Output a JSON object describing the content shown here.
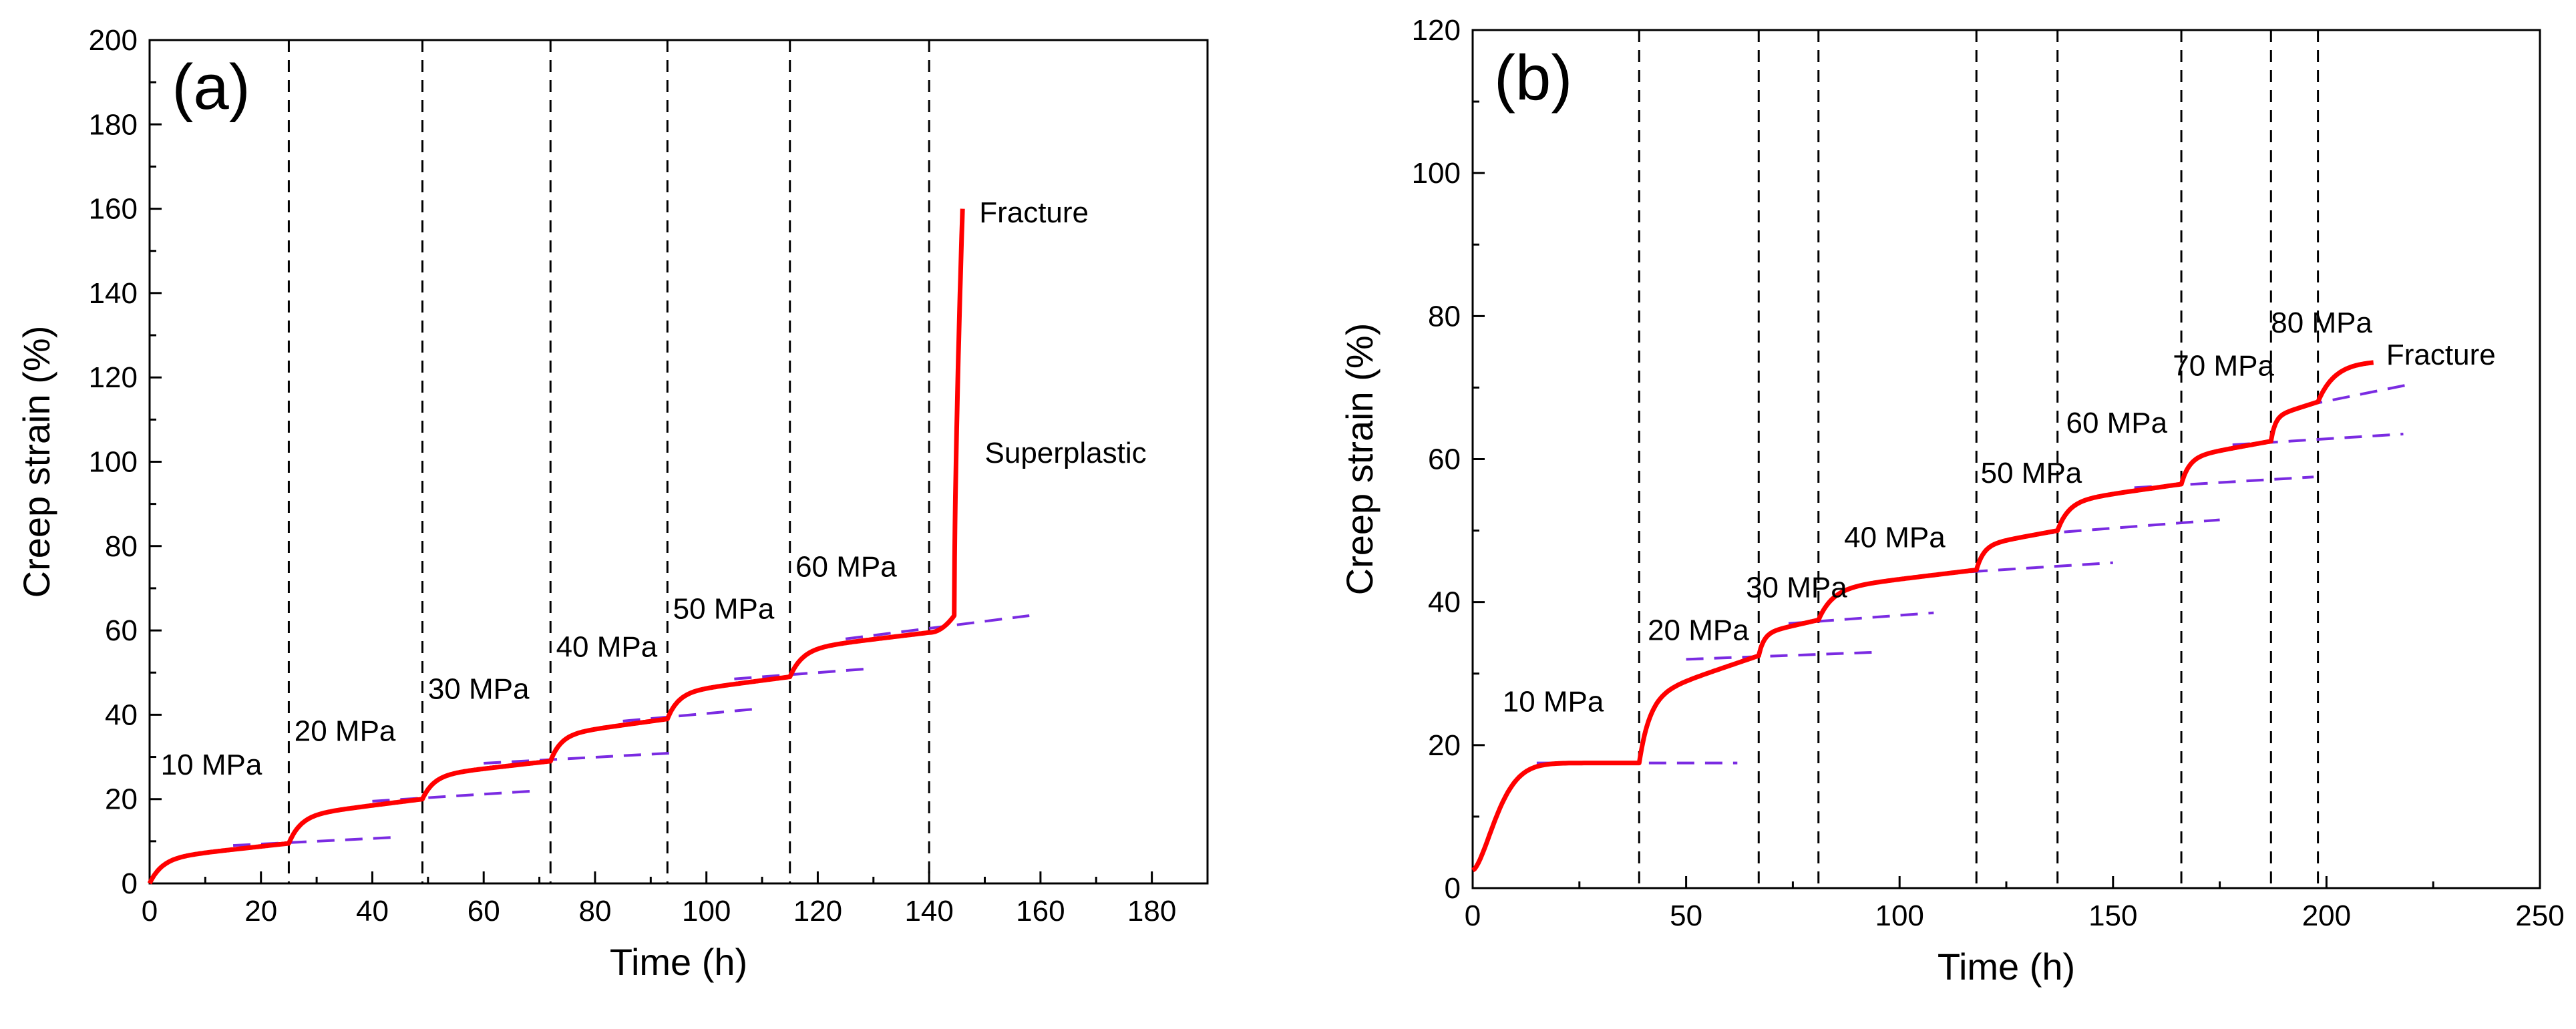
{
  "chart_data": [
    {
      "panel": "(a)",
      "type": "line",
      "xlabel": "Time (h)",
      "ylabel": "Creep strain (%)",
      "xlim": [
        0,
        190
      ],
      "ylim": [
        0,
        200
      ],
      "xticks": [
        0,
        20,
        40,
        60,
        80,
        100,
        120,
        140,
        160,
        180
      ],
      "yticks": [
        0,
        20,
        40,
        60,
        80,
        100,
        120,
        140,
        160,
        180,
        200
      ],
      "grid": false,
      "colors": {
        "creep": "#ff0000",
        "fit": "#7a2be2",
        "boundary": "#000000"
      },
      "stage_boundaries": [
        25,
        49,
        72,
        93,
        115,
        140
      ],
      "stages": [
        {
          "label": "10 MPa",
          "t0": 0,
          "t1": 25,
          "e0": 0,
          "e_end": 9.5
        },
        {
          "label": "20 MPa",
          "t0": 25,
          "t1": 49,
          "e0": 9.5,
          "e_end": 20
        },
        {
          "label": "30 MPa",
          "t0": 49,
          "t1": 72,
          "e0": 20,
          "e_end": 29
        },
        {
          "label": "40 MPa",
          "t0": 72,
          "t1": 93,
          "e0": 29,
          "e_end": 39
        },
        {
          "label": "50 MPa",
          "t0": 93,
          "t1": 115,
          "e0": 39,
          "e_end": 49
        },
        {
          "label": "60 MPa",
          "t0": 115,
          "t1": 140,
          "e0": 49,
          "e_end": 59.5
        }
      ],
      "final_stage": {
        "t0": 140,
        "t_fracture": 146,
        "e_fracture": 160
      },
      "fit_lines": [
        {
          "x": [
            15,
            45
          ],
          "y": [
            9,
            11
          ]
        },
        {
          "x": [
            40,
            70
          ],
          "y": [
            19.5,
            22
          ]
        },
        {
          "x": [
            60,
            95
          ],
          "y": [
            28.5,
            31
          ]
        },
        {
          "x": [
            85,
            110
          ],
          "y": [
            38.5,
            41.5
          ]
        },
        {
          "x": [
            105,
            130
          ],
          "y": [
            48.5,
            51
          ]
        },
        {
          "x": [
            125,
            158
          ],
          "y": [
            58,
            63.5
          ]
        }
      ],
      "annotations": [
        {
          "text": "(a)",
          "x": 4,
          "y": 190
        },
        {
          "text": "10 MPa",
          "x": 2,
          "y": 28
        },
        {
          "text": "20 MPa",
          "x": 26,
          "y": 36
        },
        {
          "text": "30 MPa",
          "x": 50,
          "y": 46
        },
        {
          "text": "40 MPa",
          "x": 73,
          "y": 56
        },
        {
          "text": "50 MPa",
          "x": 94,
          "y": 65
        },
        {
          "text": "60 MPa",
          "x": 116,
          "y": 75
        },
        {
          "text": "Fracture",
          "x": 149,
          "y": 159
        },
        {
          "text": "Superplastic",
          "x": 150,
          "y": 102
        }
      ]
    },
    {
      "panel": "(b)",
      "type": "line",
      "xlabel": "Time (h)",
      "ylabel": "Creep strain (%)",
      "xlim": [
        0,
        250
      ],
      "ylim": [
        0,
        120
      ],
      "xticks": [
        0,
        50,
        100,
        150,
        200,
        250
      ],
      "yticks": [
        0,
        20,
        40,
        60,
        80,
        100,
        120
      ],
      "grid": false,
      "colors": {
        "creep": "#ff0000",
        "fit": "#7a2be2",
        "boundary": "#000000"
      },
      "stage_boundaries": [
        39,
        67,
        81,
        118,
        137,
        166,
        187,
        198
      ],
      "stages": [
        {
          "label": "10 MPa",
          "t0": 0,
          "t1": 39,
          "e0": 2.5,
          "e_end": 17.5
        },
        {
          "label": "20 MPa",
          "t0": 39,
          "t1": 67,
          "e0": 17.5,
          "e_end": 32.5
        },
        {
          "label": "30 MPa",
          "t0": 67,
          "t1": 81,
          "e0": 32.5,
          "e_end": 37.5
        },
        {
          "label": "40 MPa",
          "t0": 81,
          "t1": 118,
          "e0": 37.5,
          "e_end": 44.5
        },
        {
          "label": "50 MPa",
          "t0": 118,
          "t1": 137,
          "e0": 44.5,
          "e_end": 50
        },
        {
          "label": "60 MPa",
          "t0": 137,
          "t1": 166,
          "e0": 50,
          "e_end": 56.5
        },
        {
          "label": "70 MPa",
          "t0": 166,
          "t1": 187,
          "e0": 56.5,
          "e_end": 62.5
        },
        {
          "label": "80 MPa",
          "t0": 187,
          "t1": 198,
          "e0": 62.5,
          "e_end": 68
        }
      ],
      "final_stage": {
        "t0": 198,
        "t_fracture": 211,
        "e_fracture": 73.5
      },
      "fit_lines": [
        {
          "x": [
            15,
            62
          ],
          "y": [
            17.5,
            17.5
          ]
        },
        {
          "x": [
            50,
            95
          ],
          "y": [
            32,
            33
          ]
        },
        {
          "x": [
            74,
            108
          ],
          "y": [
            37,
            38.5
          ]
        },
        {
          "x": [
            110,
            150
          ],
          "y": [
            44,
            45.5
          ]
        },
        {
          "x": [
            132,
            175
          ],
          "y": [
            49.5,
            51.5
          ]
        },
        {
          "x": [
            155,
            197
          ],
          "y": [
            56,
            57.5
          ]
        },
        {
          "x": [
            178,
            218
          ],
          "y": [
            62,
            63.5
          ]
        },
        {
          "x": [
            195,
            220
          ],
          "y": [
            67.5,
            70.5
          ]
        }
      ],
      "annotations": [
        {
          "text": "(b)",
          "x": 5,
          "y": 114
        },
        {
          "text": "10 MPa",
          "x": 7,
          "y": 26
        },
        {
          "text": "20 MPa",
          "x": 41,
          "y": 36
        },
        {
          "text": "30 MPa",
          "x": 64,
          "y": 42
        },
        {
          "text": "40 MPa",
          "x": 87,
          "y": 49
        },
        {
          "text": "50 MPa",
          "x": 119,
          "y": 58
        },
        {
          "text": "60 MPa",
          "x": 139,
          "y": 65
        },
        {
          "text": "70 MPa",
          "x": 164,
          "y": 73
        },
        {
          "text": "80 MPa",
          "x": 187,
          "y": 79
        },
        {
          "text": "Fracture",
          "x": 214,
          "y": 74.5
        }
      ]
    }
  ]
}
